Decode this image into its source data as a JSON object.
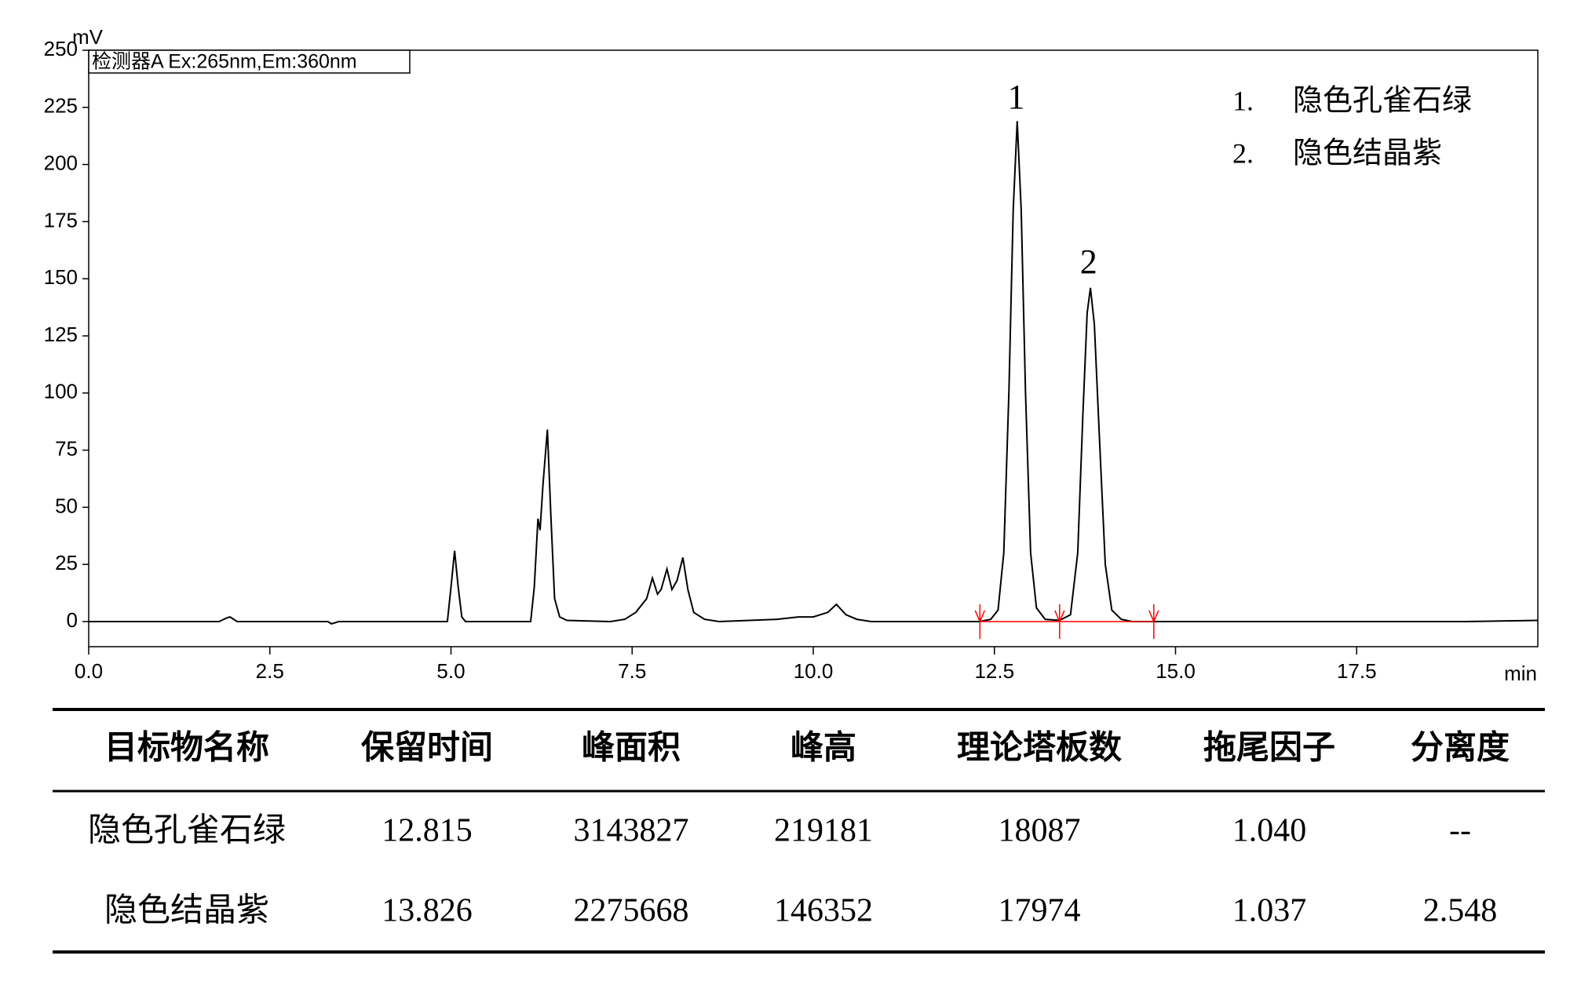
{
  "chart_data": {
    "type": "line",
    "detector_label": "检测器A Ex:265nm,Em:360nm",
    "ylabel": "mV",
    "xlabel": "min",
    "color": "#000000",
    "x": [
      0,
      1.8,
      1.9,
      1.95,
      2.05,
      3.3,
      3.35,
      3.45,
      4.95,
      5.0,
      5.05,
      5.1,
      5.15,
      5.2,
      6.1,
      6.15,
      6.2,
      6.23,
      6.27,
      6.33,
      6.38,
      6.43,
      6.5,
      6.6,
      7.2,
      7.4,
      7.55,
      7.7,
      7.78,
      7.85,
      7.9,
      7.98,
      8.05,
      8.12,
      8.2,
      8.27,
      8.35,
      8.5,
      8.7,
      9.5,
      9.8,
      10.0,
      10.1,
      10.2,
      10.32,
      10.45,
      10.6,
      10.8,
      12.3,
      12.45,
      12.55,
      12.63,
      12.7,
      12.76,
      12.815,
      12.87,
      12.93,
      13.0,
      13.08,
      13.2,
      13.4,
      13.55,
      13.65,
      13.72,
      13.78,
      13.826,
      13.88,
      13.95,
      14.03,
      14.12,
      14.25,
      14.4,
      15,
      16,
      17,
      18,
      19,
      20
    ],
    "values": [
      0,
      0,
      1.5,
      2,
      0,
      0,
      -1,
      0,
      0,
      15,
      31,
      15,
      2,
      0,
      0,
      15,
      45,
      40,
      60,
      84,
      45,
      10,
      2,
      0.5,
      0,
      1,
      4,
      10,
      19,
      12,
      14,
      23,
      14,
      18,
      28,
      14,
      4,
      1,
      0,
      1,
      2,
      2,
      3,
      4,
      7.5,
      3,
      1,
      0,
      0,
      1,
      5,
      30,
      100,
      180,
      219,
      180,
      100,
      30,
      6,
      1,
      0.5,
      3,
      30,
      90,
      135,
      146,
      130,
      80,
      25,
      5,
      1,
      0,
      0,
      0,
      0,
      0,
      0,
      0.5
    ],
    "baseline_marks": {
      "color": "#ff0000",
      "x": [
        12.3,
        13.4,
        14.7
      ]
    },
    "annotations": [
      {
        "text": "1",
        "x": 12.8,
        "y": 228
      },
      {
        "text": "2",
        "x": 13.8,
        "y": 156
      }
    ],
    "legend": [
      {
        "number": "1.",
        "name": "隐色孔雀石绿"
      },
      {
        "number": "2.",
        "name": "隐色结晶紫"
      }
    ],
    "xlim": [
      0,
      20
    ],
    "ylim": [
      -11,
      250
    ],
    "xticks": [
      {
        "value": 0,
        "label": "0.0"
      },
      2.5,
      {
        "value": 5,
        "label": "5.0"
      },
      7.5,
      {
        "value": 10,
        "label": "10.0"
      },
      12.5,
      {
        "value": 15,
        "label": "15.0"
      },
      17.5
    ],
    "yticks": [
      0,
      25,
      50,
      75,
      100,
      125,
      150,
      175,
      200,
      225,
      250
    ]
  },
  "table": {
    "header": [
      "目标物名称",
      "保留时间",
      "峰面积",
      "峰高",
      "理论塔板数",
      "拖尾因子",
      "分离度"
    ],
    "rows": [
      [
        "隐色孔雀石绿",
        "12.815",
        "3143827",
        "219181",
        "18087",
        "1.040",
        "--"
      ],
      [
        "隐色结晶紫",
        "13.826",
        "2275668",
        "146352",
        "17974",
        "1.037",
        "2.548"
      ]
    ]
  }
}
